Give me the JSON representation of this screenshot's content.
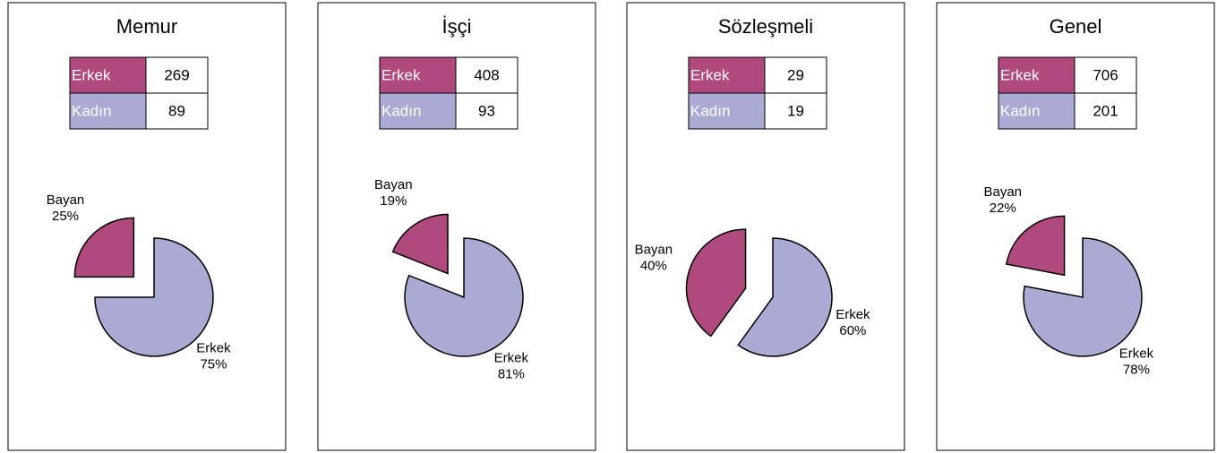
{
  "chart_data": [
    {
      "type": "pie",
      "title": "Memur",
      "table": {
        "rows": [
          [
            "Erkek",
            269
          ],
          [
            "Kadın",
            89
          ]
        ]
      },
      "categories": [
        "Erkek",
        "Bayan"
      ],
      "values": [
        75,
        25
      ],
      "value_labels": [
        "75%",
        "25%"
      ],
      "colors": [
        "#aaaad4",
        "#b04a7e"
      ]
    },
    {
      "type": "pie",
      "title": "İşçi",
      "table": {
        "rows": [
          [
            "Erkek",
            408
          ],
          [
            "Kadın",
            93
          ]
        ]
      },
      "categories": [
        "Erkek",
        "Bayan"
      ],
      "values": [
        81,
        19
      ],
      "value_labels": [
        "81%",
        "19%"
      ],
      "colors": [
        "#aaaad4",
        "#b04a7e"
      ]
    },
    {
      "type": "pie",
      "title": "Sözleşmeli",
      "table": {
        "rows": [
          [
            "Erkek",
            29
          ],
          [
            "Kadın",
            19
          ]
        ]
      },
      "categories": [
        "Erkek",
        "Bayan"
      ],
      "values": [
        60,
        40
      ],
      "value_labels": [
        "60%",
        "40%"
      ],
      "colors": [
        "#aaaad4",
        "#b04a7e"
      ]
    },
    {
      "type": "pie",
      "title": "Genel",
      "table": {
        "rows": [
          [
            "Erkek",
            706
          ],
          [
            "Kadın",
            201
          ]
        ]
      },
      "categories": [
        "Erkek",
        "Bayan"
      ],
      "values": [
        78,
        22
      ],
      "value_labels": [
        "78%",
        "22%"
      ],
      "colors": [
        "#aaaad4",
        "#b04a7e"
      ]
    }
  ]
}
